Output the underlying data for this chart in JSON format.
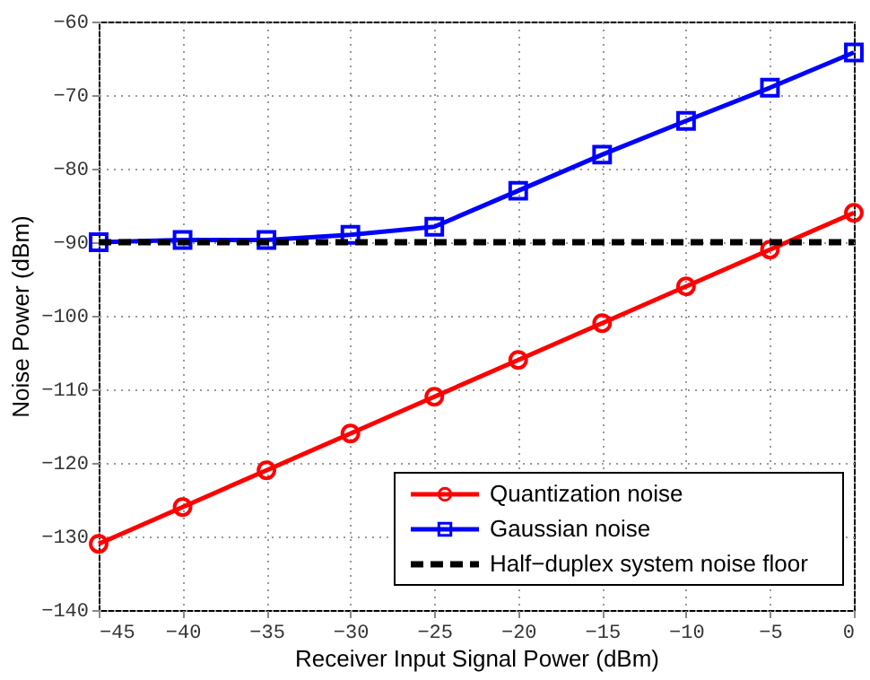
{
  "chart_data": {
    "type": "line",
    "xlabel": "Receiver Input Signal Power (dBm)",
    "ylabel": "Noise Power (dBm)",
    "x": [
      -45,
      -40,
      -35,
      -30,
      -25,
      -20,
      -15,
      -10,
      -5,
      0
    ],
    "series": [
      {
        "name": "Quantization noise",
        "color": "#ff0000",
        "marker": "circle",
        "line_style": "solid",
        "values": [
          -131,
          -126,
          -121,
          -116,
          -111,
          -106,
          -101,
          -96,
          -91,
          -86
        ]
      },
      {
        "name": "Gaussian noise",
        "color": "#0000ff",
        "marker": "square",
        "line_style": "solid",
        "values": [
          -90,
          -89.7,
          -89.7,
          -89,
          -87.9,
          -83,
          -78.1,
          -73.5,
          -69,
          -64.2
        ]
      },
      {
        "name": "Half−duplex system noise floor",
        "color": "#000000",
        "marker": "none",
        "line_style": "dashed",
        "values": [
          -90,
          -90,
          -90,
          -90,
          -90,
          -90,
          -90,
          -90,
          -90,
          -90
        ]
      }
    ],
    "xlim": [
      -45,
      0
    ],
    "xticks": [
      -45,
      -40,
      -35,
      -30,
      -25,
      -20,
      -15,
      -10,
      -5,
      0
    ],
    "ylim": [
      -140,
      -60
    ],
    "yticks": [
      -140,
      -130,
      -120,
      -110,
      -100,
      -90,
      -80,
      -70,
      -60
    ],
    "grid": true,
    "legend": "bottom right"
  }
}
